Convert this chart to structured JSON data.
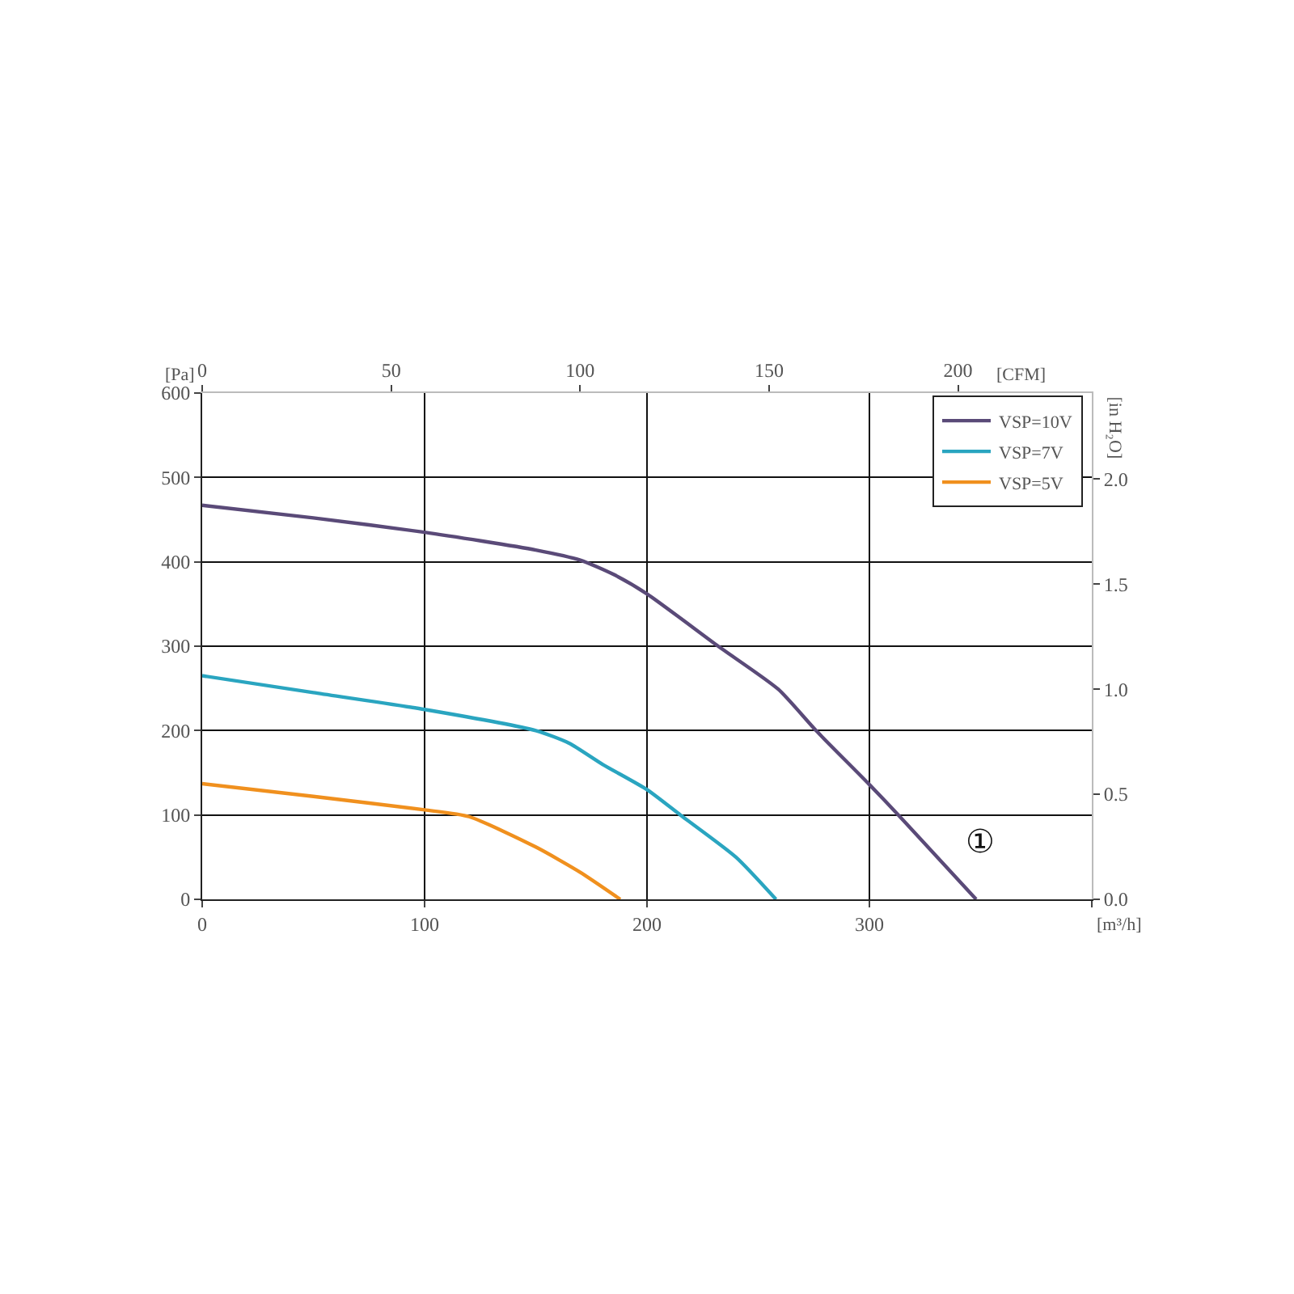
{
  "chart_data": {
    "type": "line",
    "ylabel": "[Pa]",
    "xlabel": "[m³/h]",
    "x2label": "[CFM]",
    "y2label": "[in H₂O]",
    "xlim": [
      0,
      400
    ],
    "xticks": [
      0,
      100,
      200,
      300,
      {
        "value": 400,
        "label": null
      }
    ],
    "x2lim": [
      0,
      235.4
    ],
    "x2ticks": [
      0,
      50,
      100,
      150,
      200
    ],
    "ylim": [
      0,
      600
    ],
    "yticks": [
      0,
      100,
      200,
      300,
      400,
      500,
      600
    ],
    "y2lim": [
      0,
      2.409
    ],
    "y2ticks": [
      {
        "value": 0,
        "label": "0.0"
      },
      {
        "value": 0.5,
        "label": "0.5"
      },
      {
        "value": 1,
        "label": "1.0"
      },
      {
        "value": 1.5,
        "label": "1.5"
      },
      {
        "value": 2,
        "label": "2.0"
      }
    ],
    "grid": true,
    "legend": "top right",
    "line_style": "solid",
    "marker": "none",
    "annotations": [
      "①"
    ],
    "series": [
      {
        "name": "VSP=10V",
        "color": "#5a4a78",
        "x": [
          0,
          50,
          100,
          150,
          170,
          185,
          200,
          232,
          259,
          276,
          300,
          313,
          348
        ],
        "values": [
          467,
          452,
          435,
          414,
          402,
          385,
          362,
          300,
          249,
          200,
          136,
          100,
          0
        ]
      },
      {
        "name": "VSP=7V",
        "color": "#2aa5c0",
        "x": [
          0,
          50,
          100,
          150,
          165,
          180,
          200,
          215,
          240,
          258
        ],
        "values": [
          265,
          245,
          225,
          200,
          185,
          160,
          130,
          100,
          50,
          0
        ]
      },
      {
        "name": "VSP=5V",
        "color": "#f0901e",
        "x": [
          0,
          50,
          100,
          120,
          150,
          170,
          188
        ],
        "values": [
          137,
          122,
          106,
          98,
          62,
          32,
          0
        ]
      }
    ]
  }
}
